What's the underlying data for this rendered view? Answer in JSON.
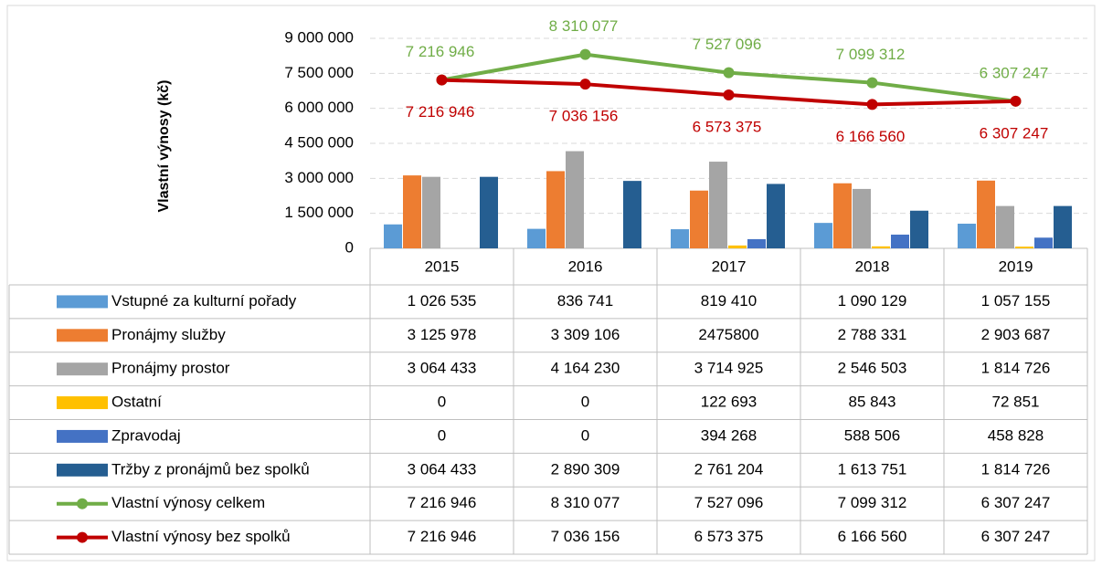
{
  "chart_data": {
    "type": "bar",
    "y_label": "Vlastní výnosy (kč)",
    "categories": [
      "2015",
      "2016",
      "2017",
      "2018",
      "2019"
    ],
    "ylim": [
      0,
      9000000
    ],
    "yticks": [
      0,
      {
        "value": 1500000,
        "label": "1 500 000"
      },
      {
        "value": 3000000,
        "label": "3 000 000"
      },
      {
        "value": 4500000,
        "label": "4 500 000"
      },
      {
        "value": 6000000,
        "label": "6 000 000"
      },
      {
        "value": 7500000,
        "label": "7 500 000"
      },
      {
        "value": 9000000,
        "label": "9 000 000"
      }
    ],
    "grid": true,
    "series": [
      {
        "name": "Vstupné za kulturní pořady",
        "type": "bar",
        "color": "#5b9bd5",
        "values": [
          1026535,
          836741,
          819410,
          1090129,
          1057155
        ],
        "value_labels": [
          "1 026 535",
          "836 741",
          "819 410",
          "1 090 129",
          "1 057 155"
        ]
      },
      {
        "name": "Pronájmy služby",
        "type": "bar",
        "color": "#ed7d31",
        "values": [
          3125978,
          3309106,
          2475800,
          2788331,
          2903687
        ],
        "value_labels": [
          "3 125 978",
          "3 309 106",
          "2475800",
          "2 788 331",
          "2 903 687"
        ]
      },
      {
        "name": "Pronájmy prostor",
        "type": "bar",
        "color": "#a5a5a5",
        "values": [
          3064433,
          4164230,
          3714925,
          2546503,
          1814726
        ],
        "value_labels": [
          "3 064 433",
          "4 164 230",
          "3 714 925",
          "2 546 503",
          "1 814 726"
        ]
      },
      {
        "name": "Ostatní",
        "type": "bar",
        "color": "#ffc000",
        "values": [
          0,
          0,
          122693,
          85843,
          72851
        ],
        "value_labels": [
          "0",
          "0",
          "122 693",
          "85 843",
          "72 851"
        ]
      },
      {
        "name": "Zpravodaj",
        "type": "bar",
        "color": "#4472c4",
        "values": [
          0,
          0,
          394268,
          588506,
          458828
        ],
        "value_labels": [
          "0",
          "0",
          "394 268",
          "588 506",
          "458 828"
        ]
      },
      {
        "name": "Tržby z pronájmů bez spolků",
        "type": "bar",
        "color": "#255e91",
        "values": [
          3064433,
          2890309,
          2761204,
          1613751,
          1814726
        ],
        "value_labels": [
          "3 064 433",
          "2 890 309",
          "2 761 204",
          "1 613 751",
          "1 814 726"
        ]
      },
      {
        "name": "Vlastní výnosy celkem",
        "type": "line",
        "color": "#70ad47",
        "values": [
          7216946,
          8310077,
          7527096,
          7099312,
          6307247
        ],
        "value_labels": [
          "7 216 946",
          "8 310 077",
          "7 527 096",
          "7 099 312",
          "6 307 247"
        ]
      },
      {
        "name": "Vlastní výnosy bez spolků",
        "type": "line",
        "color": "#c00000",
        "values": [
          7216946,
          7036156,
          6573375,
          6166560,
          6307247
        ],
        "value_labels": [
          "7 216 946",
          "7 036 156",
          "6 573 375",
          "6 166 560",
          "6 307 247"
        ]
      }
    ]
  }
}
